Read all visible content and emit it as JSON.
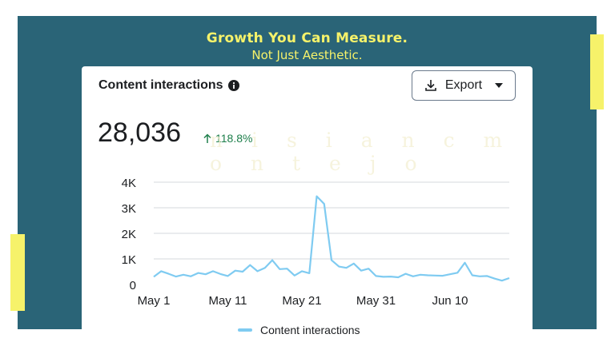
{
  "headline": {
    "title": "Growth You Can Measure.",
    "subtitle": "Not Just Aesthetic."
  },
  "card": {
    "title": "Content interactions",
    "info_icon": "info-icon",
    "export_label": "Export",
    "metric_value": "28,036",
    "delta_text": "118.8%",
    "delta_direction": "up"
  },
  "watermark": "n i s i a n c m o n t e j o",
  "colors": {
    "background_panel": "#2a6477",
    "accent": "#f6f26a",
    "line": "#7fcbf1",
    "positive": "#1e7f4b"
  },
  "chart_data": {
    "type": "line",
    "x_tick_labels": [
      "May 1",
      "May 11",
      "May 21",
      "May 31",
      "Jun 10"
    ],
    "y_tick_labels": [
      "0",
      "1K",
      "2K",
      "3K",
      "4K"
    ],
    "ylim": [
      0,
      4000
    ],
    "grid": true,
    "legend_position": "bottom",
    "series": [
      {
        "name": "Content interactions",
        "x": [
          "May 1",
          "May 2",
          "May 3",
          "May 4",
          "May 5",
          "May 6",
          "May 7",
          "May 8",
          "May 9",
          "May 10",
          "May 11",
          "May 12",
          "May 13",
          "May 14",
          "May 15",
          "May 16",
          "May 17",
          "May 18",
          "May 19",
          "May 20",
          "May 21",
          "May 22",
          "May 23",
          "May 24",
          "May 25",
          "May 26",
          "May 27",
          "May 28",
          "May 29",
          "May 30",
          "May 31",
          "Jun 1",
          "Jun 2",
          "Jun 3",
          "Jun 4",
          "Jun 5",
          "Jun 6",
          "Jun 7",
          "Jun 8",
          "Jun 9",
          "Jun 10",
          "Jun 11",
          "Jun 12",
          "Jun 13",
          "Jun 14",
          "Jun 15",
          "Jun 16",
          "Jun 17",
          "Jun 18"
        ],
        "values": [
          300,
          520,
          420,
          310,
          380,
          320,
          450,
          400,
          520,
          410,
          330,
          540,
          500,
          760,
          520,
          650,
          950,
          600,
          620,
          350,
          520,
          440,
          3450,
          3150,
          950,
          700,
          650,
          820,
          540,
          620,
          330,
          300,
          310,
          280,
          420,
          320,
          380,
          360,
          350,
          340,
          400,
          460,
          850,
          360,
          320,
          330,
          230,
          150,
          250
        ]
      }
    ]
  }
}
